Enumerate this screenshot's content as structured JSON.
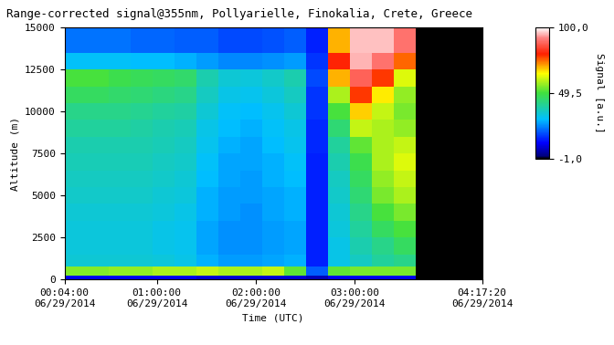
{
  "chart_data": {
    "type": "heatmap",
    "title": "Range-corrected signal@355nm, Pollyarielle, Finokalia, Crete, Greece",
    "x_label": "Time (UTC)",
    "y_label": "Altitude (m)",
    "x_edges": [
      240,
      1040,
      1840,
      2640,
      3440,
      4240,
      5040,
      5840,
      6640,
      7440,
      8240,
      9040,
      9840,
      10640,
      11440,
      12240,
      13040,
      13840,
      14640,
      15440
    ],
    "y_edges": [
      0,
      250,
      750,
      1500,
      2500,
      3500,
      4500,
      5500,
      6500,
      7500,
      8500,
      9500,
      10500,
      11500,
      12500,
      13500,
      15000
    ],
    "cells": [
      [
        10,
        10,
        10,
        10,
        10,
        10,
        8,
        8,
        8,
        8,
        8,
        6,
        10,
        10,
        10,
        10,
        -1,
        -1,
        -1
      ],
      [
        55,
        55,
        56,
        56,
        58,
        58,
        60,
        58,
        58,
        60,
        52,
        20,
        52,
        54,
        54,
        54,
        -1,
        -1,
        -1
      ],
      [
        34,
        34,
        34,
        34,
        33,
        32,
        28,
        26,
        26,
        27,
        28,
        14,
        32,
        36,
        40,
        42,
        -1,
        -1,
        -1
      ],
      [
        33,
        33,
        33,
        33,
        32,
        31,
        27,
        25,
        25,
        26,
        27,
        14,
        32,
        38,
        42,
        46,
        -1,
        -1,
        -1
      ],
      [
        33,
        33,
        33,
        33,
        32,
        31,
        27,
        25,
        25,
        26,
        27,
        14,
        33,
        40,
        46,
        50,
        -1,
        -1,
        -1
      ],
      [
        34,
        34,
        34,
        34,
        33,
        32,
        28,
        26,
        25,
        27,
        28,
        14,
        34,
        42,
        50,
        54,
        -1,
        -1,
        -1
      ],
      [
        35,
        35,
        35,
        35,
        34,
        33,
        28,
        26,
        26,
        27,
        28,
        14,
        35,
        44,
        54,
        58,
        -1,
        -1,
        -1
      ],
      [
        36,
        36,
        36,
        36,
        35,
        34,
        29,
        27,
        26,
        28,
        29,
        14,
        36,
        46,
        56,
        60,
        -1,
        -1,
        -1
      ],
      [
        37,
        37,
        37,
        37,
        36,
        35,
        30,
        27,
        27,
        28,
        30,
        14,
        38,
        48,
        58,
        62,
        -1,
        -1,
        -1
      ],
      [
        38,
        38,
        38,
        38,
        37,
        36,
        31,
        28,
        27,
        29,
        31,
        15,
        40,
        52,
        58,
        60,
        -1,
        -1,
        -1
      ],
      [
        40,
        40,
        40,
        39,
        38,
        37,
        32,
        29,
        28,
        30,
        32,
        15,
        44,
        60,
        58,
        56,
        -1,
        -1,
        -1
      ],
      [
        42,
        42,
        42,
        41,
        40,
        39,
        34,
        30,
        29,
        31,
        34,
        16,
        50,
        68,
        60,
        54,
        -1,
        -1,
        -1
      ],
      [
        46,
        46,
        45,
        44,
        43,
        42,
        36,
        32,
        31,
        33,
        36,
        16,
        58,
        78,
        66,
        56,
        -1,
        -1,
        -1
      ],
      [
        50,
        50,
        48,
        47,
        46,
        45,
        38,
        34,
        33,
        35,
        38,
        18,
        70,
        88,
        78,
        62,
        -1,
        -1,
        -1
      ],
      [
        30,
        30,
        30,
        29,
        29,
        28,
        26,
        24,
        24,
        25,
        26,
        16,
        80,
        95,
        90,
        75,
        -1,
        -1,
        -1
      ],
      [
        22,
        22,
        22,
        21,
        21,
        20,
        20,
        18,
        18,
        19,
        20,
        14,
        70,
        96,
        96,
        90,
        -1,
        -1,
        -1
      ]
    ],
    "xlim": [
      240,
      15440
    ],
    "xticks": [
      {
        "value": 240,
        "label": "00:04:00\n06/29/2014"
      },
      {
        "value": 3600,
        "label": "01:00:00\n06/29/2014"
      },
      {
        "value": 7200,
        "label": "02:00:00\n06/29/2014"
      },
      {
        "value": 10800,
        "label": "03:00:00\n06/29/2014"
      },
      {
        "value": 15440,
        "label": "04:17:20\n06/29/2014"
      }
    ],
    "ylim": [
      0,
      15000
    ],
    "yticks": [
      0,
      2500,
      5000,
      7500,
      10000,
      12500,
      15000
    ],
    "colorbar": {
      "label": "Signal [a.u.]",
      "range": [
        -1,
        100
      ],
      "ticks": [
        {
          "value": -1,
          "label": "-1,0"
        },
        {
          "value": 49.5,
          "label": "49,5"
        },
        {
          "value": 100,
          "label": "100,0"
        }
      ]
    }
  }
}
